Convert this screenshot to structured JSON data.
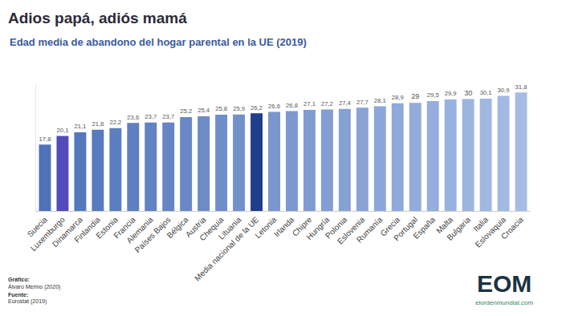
{
  "chart_data": {
    "type": "bar",
    "title": "Adios papá, adiós mamá",
    "subtitle": "Edad media de abandono del hogar parental en la UE (2019)",
    "categories": [
      "Suecia",
      "Luxemburgo",
      "Dinamarca",
      "Finlandia",
      "Estonia",
      "Francia",
      "Alemania",
      "Países Bajos",
      "Bélgica",
      "Austria",
      "Chequia",
      "Lituania",
      "Media nacional de la UE",
      "Letonia",
      "Irlanda",
      "Chipre",
      "Hungría",
      "Polonia",
      "Eslovenia",
      "Rumanía",
      "Grecia",
      "Portugal",
      "España",
      "Malta",
      "Bulgaria",
      "Italia",
      "Eslovaquia",
      "Croacia"
    ],
    "values": [
      17.8,
      20.1,
      21.1,
      21.8,
      22.2,
      23.6,
      23.7,
      23.7,
      25.2,
      25.4,
      25.8,
      25.9,
      26.2,
      26.6,
      26.8,
      27.1,
      27.2,
      27.4,
      27.7,
      28.1,
      28.9,
      29,
      29.5,
      29.9,
      30,
      30.1,
      30.9,
      31.8
    ],
    "value_labels": [
      "17,8",
      "20,1",
      "21,1",
      "21,8",
      "22,2",
      "23,6",
      "23,7",
      "23,7",
      "25,2",
      "25,4",
      "25,8",
      "25,9",
      "26,2",
      "26,6",
      "26,8",
      "27,1",
      "27,2",
      "27,4",
      "27,7",
      "28,1",
      "28,9",
      "29",
      "29,5",
      "29,9",
      "30",
      "30,1",
      "30,9",
      "31,8"
    ],
    "colors": [
      "#4f72b8",
      "#524bba",
      "#5577bb",
      "#597abd",
      "#5c7dbf",
      "#5f80c0",
      "#6282c2",
      "#6685c4",
      "#6988c5",
      "#6c8bc7",
      "#6f8dc9",
      "#7290ca",
      "#1f3e8c",
      "#7996ce",
      "#7c98cf",
      "#7f9bd1",
      "#839ed3",
      "#86a1d4",
      "#89a3d6",
      "#8ca6d8",
      "#8fa9d9",
      "#93acdb",
      "#96aedd",
      "#99b1de",
      "#9cb4e0",
      "#a0b7e2",
      "#a3b9e3",
      "#a6bce5"
    ],
    "ylim": [
      0,
      34
    ],
    "data_labels": true,
    "tick_labels": "x",
    "grid": false,
    "annotations": [
      "Gráfico:",
      "Álvaro Merino (2020)",
      "Fuente:",
      "Eurostat (2019)",
      "EOM",
      "elordenmundial.com"
    ]
  }
}
